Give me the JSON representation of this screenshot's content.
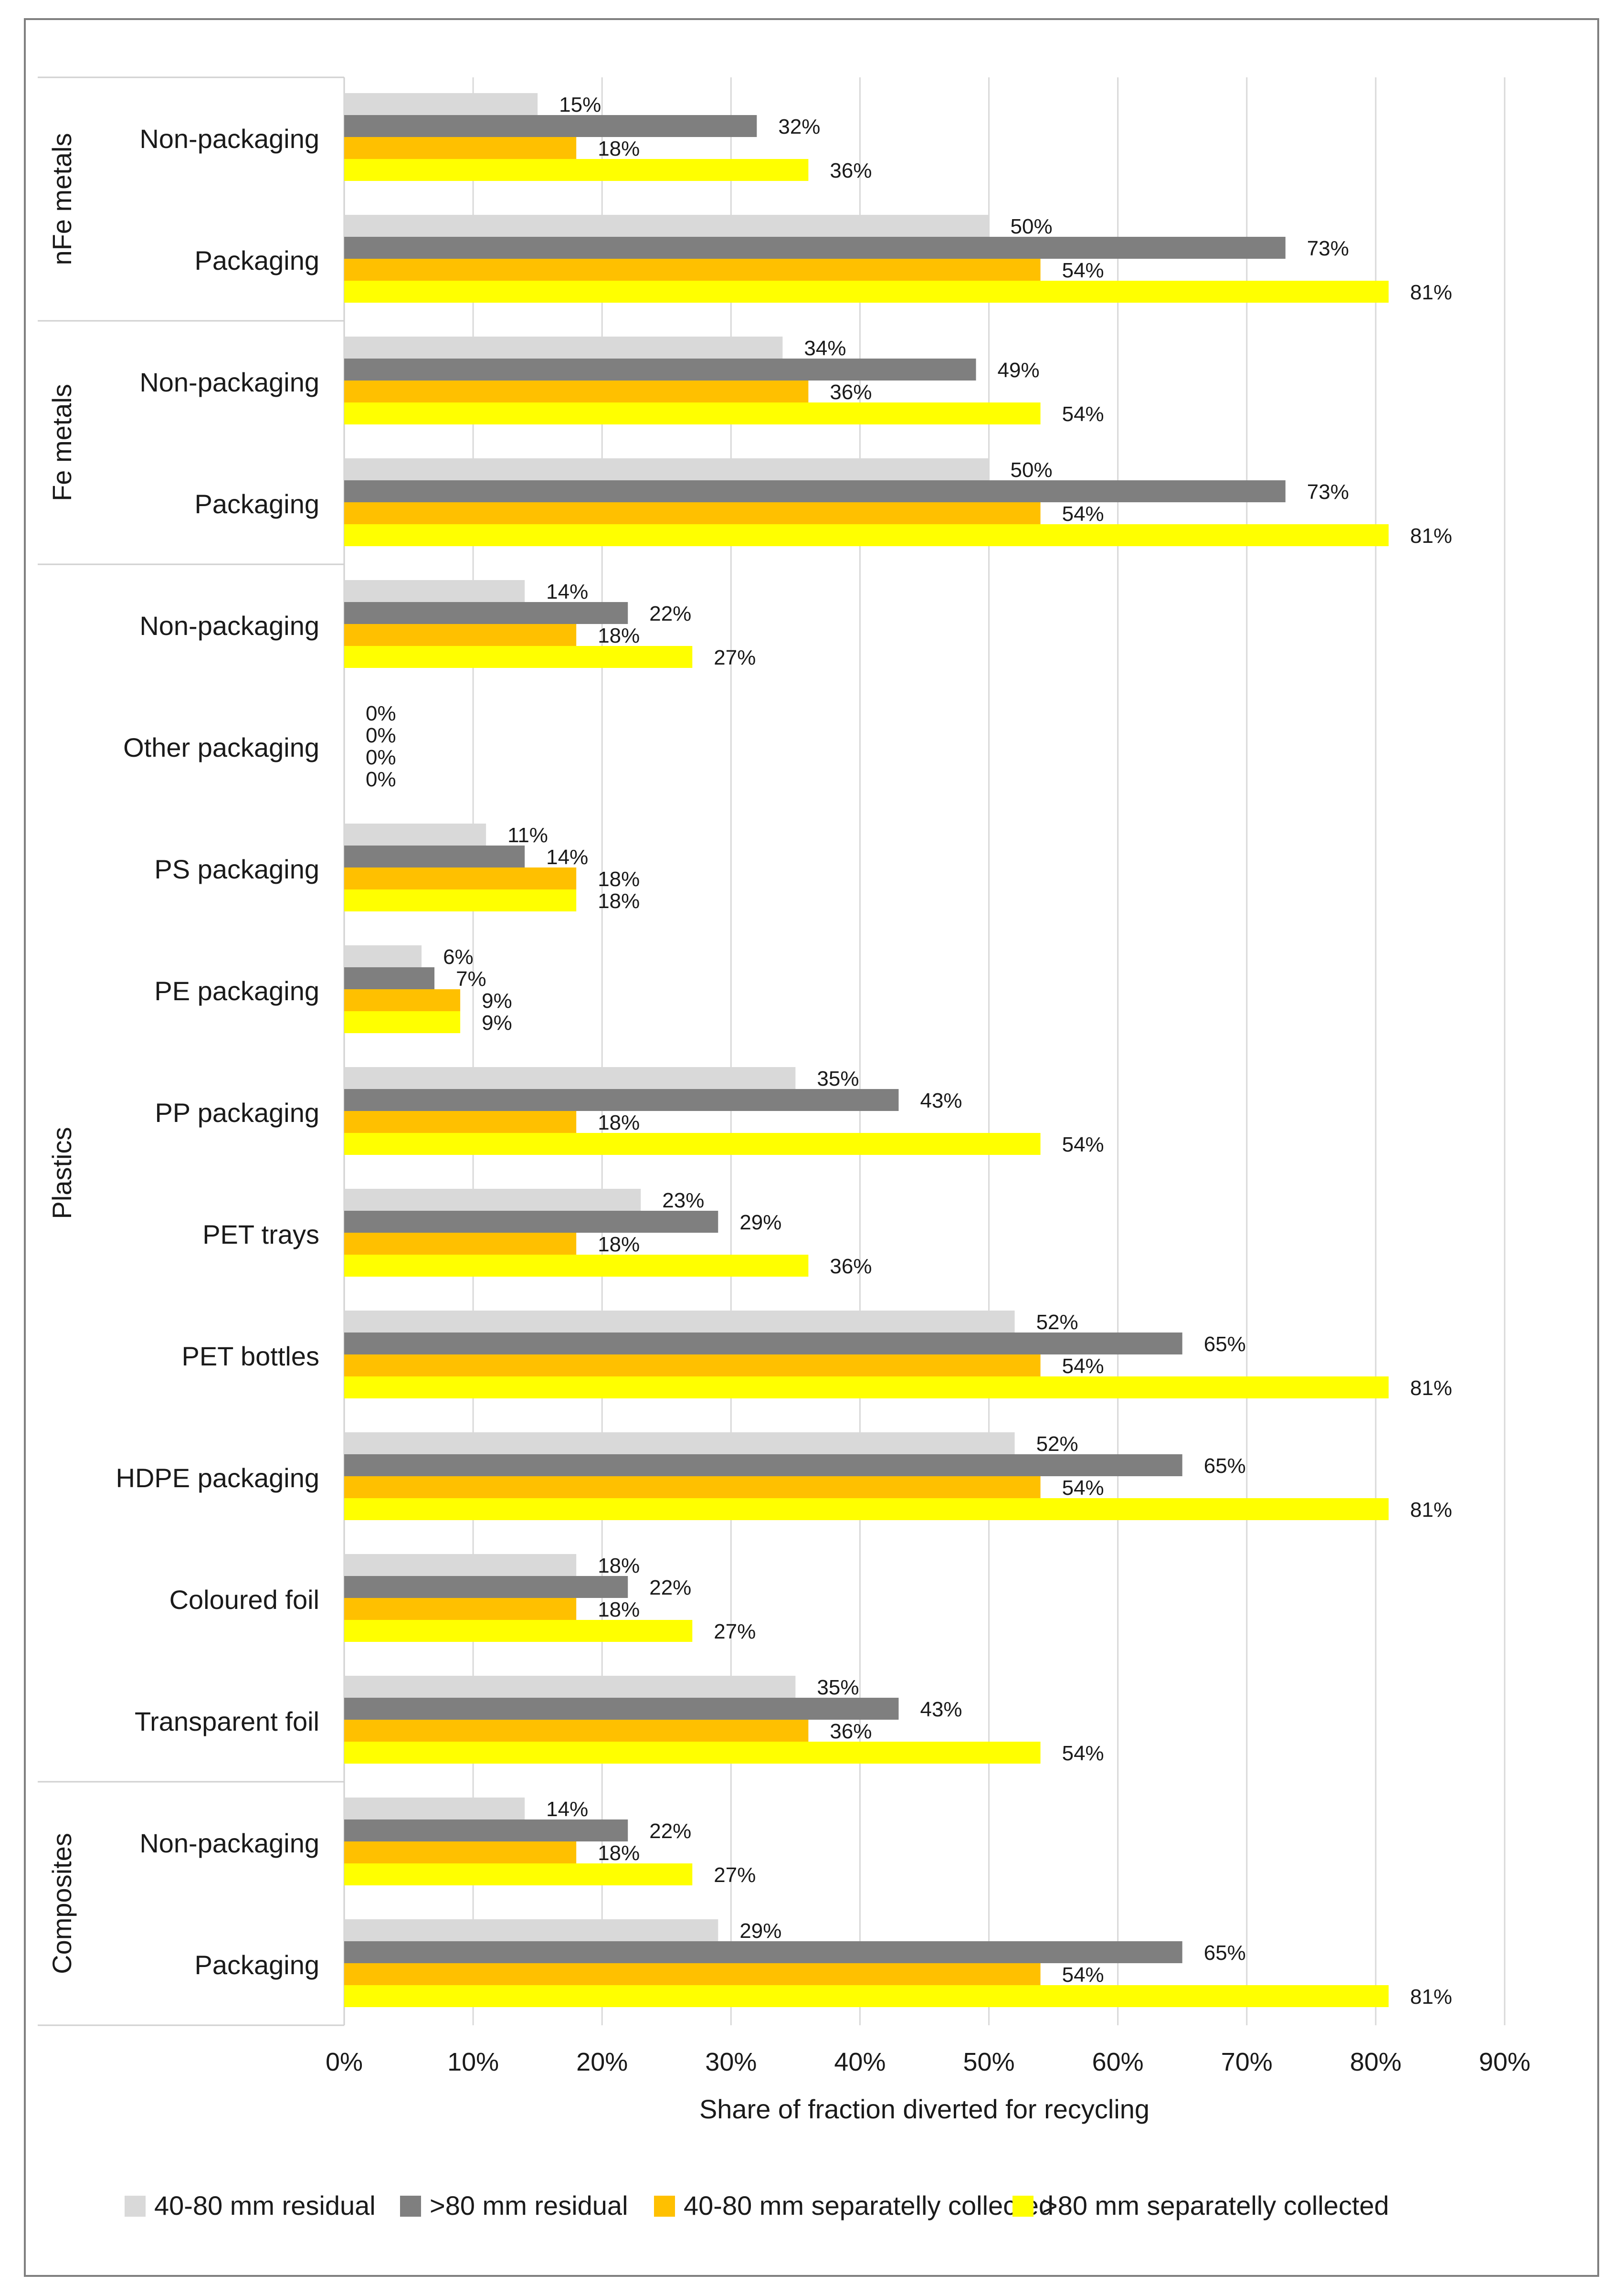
{
  "chart_data": {
    "type": "bar",
    "orientation": "horizontal",
    "title": "",
    "xlabel": "Share of fraction diverted for recycling",
    "ylabel": "",
    "xlim": [
      0,
      90
    ],
    "x_ticks": [
      0,
      10,
      20,
      30,
      40,
      50,
      60,
      70,
      80,
      90
    ],
    "x_tick_labels": [
      "0%",
      "10%",
      "20%",
      "30%",
      "40%",
      "50%",
      "60%",
      "70%",
      "80%",
      "90%"
    ],
    "grid": true,
    "legend_position": "bottom",
    "groups": [
      {
        "name": "nFe metals",
        "categories": [
          "Non-packaging",
          "Packaging"
        ]
      },
      {
        "name": "Fe metals",
        "categories": [
          "Non-packaging",
          "Packaging"
        ]
      },
      {
        "name": "Plastics",
        "categories": [
          "Non-packaging",
          "Other packaging",
          "PS packaging",
          "PE packaging",
          "PP packaging",
          "PET trays",
          "PET bottles",
          "HDPE packaging",
          "Coloured foil",
          "Transparent foil"
        ]
      },
      {
        "name": "Composites",
        "categories": [
          "Non-packaging",
          "Packaging"
        ]
      }
    ],
    "series": [
      {
        "name": "40-80 mm residual",
        "color": "#d9d9d9",
        "values": [
          15,
          50,
          34,
          50,
          14,
          0,
          11,
          6,
          35,
          23,
          52,
          52,
          18,
          35,
          14,
          29
        ],
        "labels": [
          "15%",
          "50%",
          "34%",
          "50%",
          "14%",
          "0%",
          "11%",
          "6%",
          "35%",
          "23%",
          "52%",
          "52%",
          "18%",
          "35%",
          "14%",
          "29%"
        ]
      },
      {
        "name": ">80 mm residual",
        "color": "#7f7f7f",
        "values": [
          32,
          73,
          49,
          73,
          22,
          0,
          14,
          7,
          43,
          29,
          65,
          65,
          22,
          43,
          22,
          65
        ],
        "labels": [
          "32%",
          "73%",
          "49%",
          "73%",
          "22%",
          "0%",
          "14%",
          "7%",
          "43%",
          "29%",
          "65%",
          "65%",
          "22%",
          "43%",
          "22%",
          "65%"
        ]
      },
      {
        "name": "40-80 mm separatelly collected",
        "color": "#ffc000",
        "values": [
          18,
          54,
          36,
          54,
          18,
          0,
          18,
          9,
          18,
          18,
          54,
          54,
          18,
          36,
          18,
          54
        ],
        "labels": [
          "18%",
          "54%",
          "36%",
          "54%",
          "18%",
          "0%",
          "18%",
          "9%",
          "18%",
          "18%",
          "54%",
          "54%",
          "18%",
          "36%",
          "18%",
          "54%"
        ]
      },
      {
        "name": ">80 mm separatelly collected",
        "color": "#ffff00",
        "values": [
          36,
          81,
          54,
          81,
          27,
          0,
          18,
          9,
          54,
          36,
          81,
          81,
          27,
          54,
          27,
          81
        ],
        "labels": [
          "36%",
          "81%",
          "54%",
          "81%",
          "27%",
          "0%",
          "18%",
          "9%",
          "54%",
          "36%",
          "81%",
          "81%",
          "27%",
          "54%",
          "27%",
          "81%"
        ]
      }
    ]
  }
}
